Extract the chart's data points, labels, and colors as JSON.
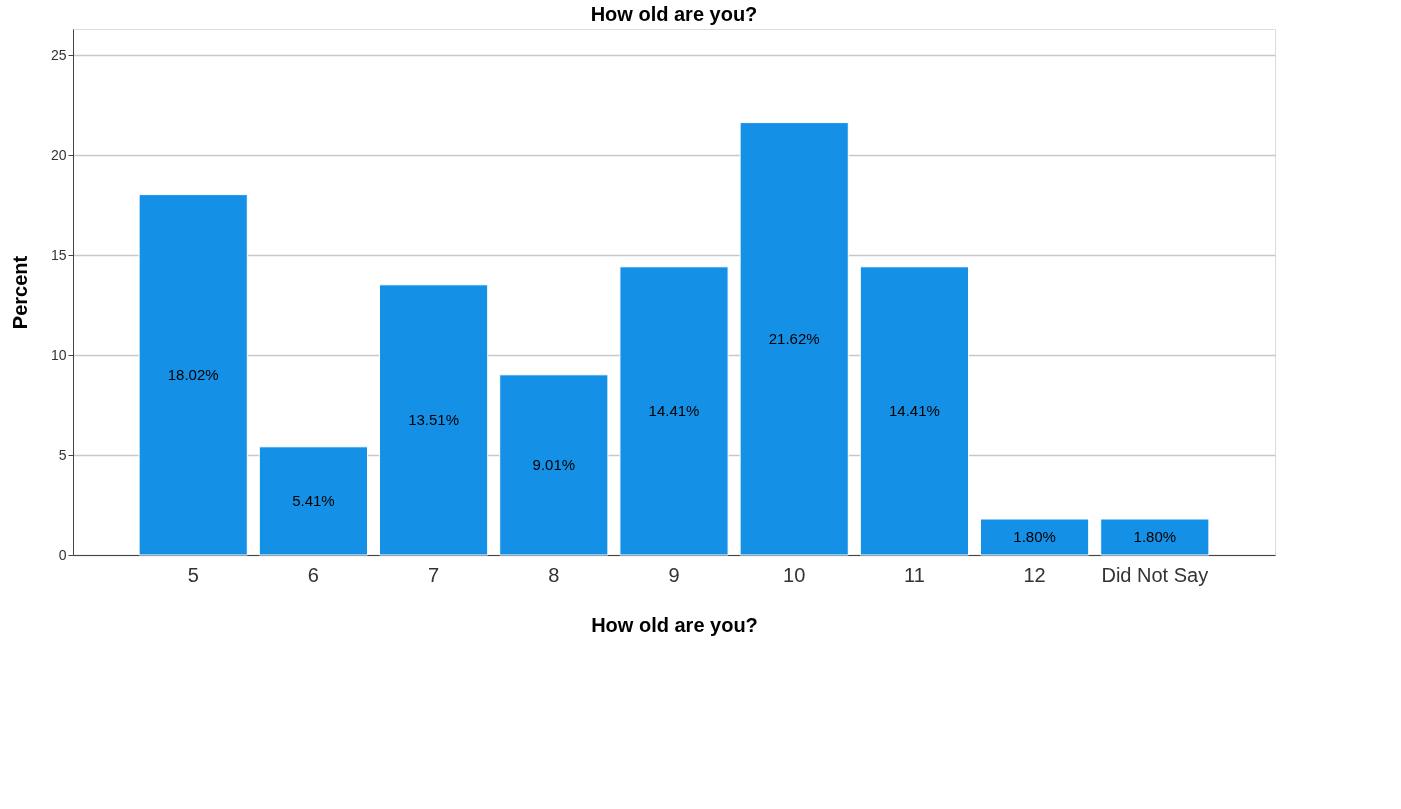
{
  "chart_data": {
    "type": "bar",
    "title": "How old are you?",
    "xlabel": "How old are you?",
    "ylabel": "Percent",
    "categories": [
      "5",
      "6",
      "7",
      "8",
      "9",
      "10",
      "11",
      "12",
      "Did Not Say"
    ],
    "values": [
      18.02,
      5.41,
      13.51,
      9.01,
      14.41,
      21.62,
      14.41,
      1.8,
      1.8
    ],
    "value_labels": [
      "18.02%",
      "5.41%",
      "13.51%",
      "9.01%",
      "14.41%",
      "21.62%",
      "14.41%",
      "1.80%",
      "1.80%"
    ],
    "color": "#1490e6",
    "ylim": [
      0,
      26.3
    ],
    "yticks": [
      0,
      5,
      10,
      15,
      20,
      25
    ],
    "grid": "y"
  }
}
